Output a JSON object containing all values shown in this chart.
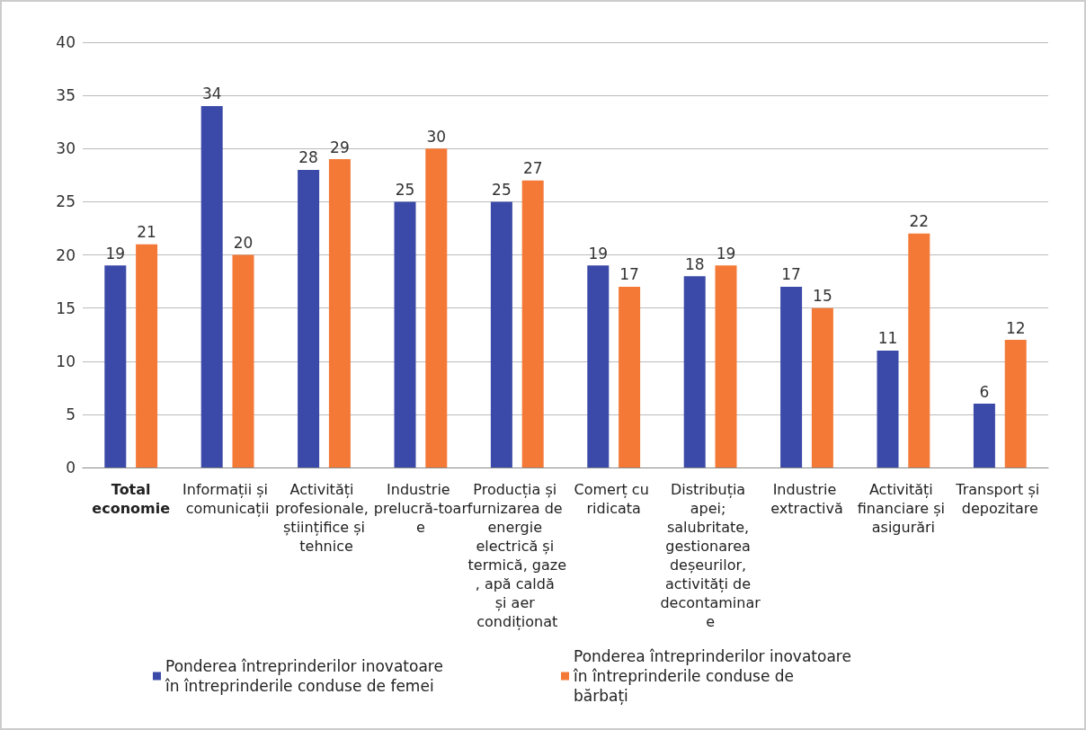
{
  "chart_data": {
    "type": "bar",
    "categories": [
      "Total economie",
      "Informații și comunicații",
      "Activități profesionale, științifice și tehnice",
      "Industrie prelucră-toare",
      "Producția și furnizarea de energie electrică și termică, gaze, apă caldă și aer condiționat",
      "Comerț cu ridicata",
      "Distribuția apei; salubritate, gestionarea deșeurilor, activități de decontaminare",
      "Industrie extractivă",
      "Activități financiare și asigurări",
      "Transport și depozitare"
    ],
    "series": [
      {
        "name": "Ponderea întreprinderilor inovatoare în întreprinderile conduse de femei",
        "color": "#3b4aa8",
        "values": [
          19,
          34,
          28,
          25,
          25,
          19,
          18,
          17,
          11,
          6
        ]
      },
      {
        "name": "Ponderea întreprinderilor inovatoare în întreprinderile conduse de bărbați",
        "color": "#f47937",
        "values": [
          21,
          20,
          29,
          30,
          27,
          17,
          19,
          15,
          22,
          12
        ]
      }
    ],
    "ylim": [
      0,
      40
    ],
    "yticks": [
      0,
      5,
      10,
      15,
      20,
      25,
      30,
      35,
      40
    ],
    "grid": "y",
    "legend": "bottom",
    "data_labels": true
  }
}
